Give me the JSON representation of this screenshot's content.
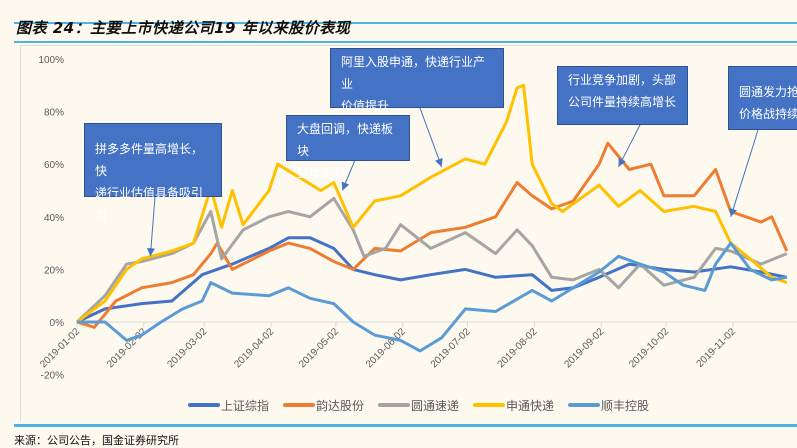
{
  "title": "图表 24：主要上市快递公司19 年以来股价表现",
  "source": "来源：公司公告，国金证券研究所",
  "chart_data": {
    "type": "line",
    "title": "",
    "xlabel": "",
    "ylabel": "",
    "ylim": [
      -20,
      100
    ],
    "yticks": [
      -20,
      0,
      20,
      40,
      60,
      80,
      100
    ],
    "ytick_labels": [
      "-20%",
      "0%",
      "20%",
      "40%",
      "60%",
      "80%",
      "100%"
    ],
    "xlim": [
      "2019-01-02",
      "2019-11-28"
    ],
    "xtick_labels": [
      "2019-01-02",
      "2019-02-02",
      "2019-03-02",
      "2019-04-02",
      "2019-05-02",
      "2019-06-02",
      "2019-07-02",
      "2019-08-02",
      "2019-09-02",
      "2019-10-02",
      "2019-11-02"
    ],
    "grid": false,
    "legend_position": "bottom",
    "series": [
      {
        "name": "上证综指",
        "color": "#4472c4",
        "points": [
          [
            "2019-01-02",
            0
          ],
          [
            "2019-01-15",
            5
          ],
          [
            "2019-02-01",
            7
          ],
          [
            "2019-02-15",
            8
          ],
          [
            "2019-03-01",
            18
          ],
          [
            "2019-03-15",
            22
          ],
          [
            "2019-04-01",
            28
          ],
          [
            "2019-04-10",
            32
          ],
          [
            "2019-04-20",
            32
          ],
          [
            "2019-05-01",
            28
          ],
          [
            "2019-05-10",
            20
          ],
          [
            "2019-05-20",
            18
          ],
          [
            "2019-06-01",
            16
          ],
          [
            "2019-06-15",
            18
          ],
          [
            "2019-07-01",
            20
          ],
          [
            "2019-07-15",
            17
          ],
          [
            "2019-08-01",
            18
          ],
          [
            "2019-08-10",
            12
          ],
          [
            "2019-08-20",
            13
          ],
          [
            "2019-09-01",
            17
          ],
          [
            "2019-09-15",
            22
          ],
          [
            "2019-10-01",
            20
          ],
          [
            "2019-10-15",
            19
          ],
          [
            "2019-11-01",
            21
          ],
          [
            "2019-11-15",
            19
          ],
          [
            "2019-11-27",
            17
          ]
        ]
      },
      {
        "name": "韵达股份",
        "color": "#ed7d31",
        "points": [
          [
            "2019-01-02",
            0
          ],
          [
            "2019-01-10",
            -2
          ],
          [
            "2019-01-20",
            8
          ],
          [
            "2019-02-01",
            13
          ],
          [
            "2019-02-15",
            15
          ],
          [
            "2019-02-25",
            18
          ],
          [
            "2019-03-05",
            26
          ],
          [
            "2019-03-08",
            30
          ],
          [
            "2019-03-15",
            20
          ],
          [
            "2019-04-01",
            27
          ],
          [
            "2019-04-10",
            30
          ],
          [
            "2019-04-20",
            28
          ],
          [
            "2019-05-01",
            23
          ],
          [
            "2019-05-10",
            20
          ],
          [
            "2019-05-20",
            28
          ],
          [
            "2019-06-01",
            27
          ],
          [
            "2019-06-15",
            34
          ],
          [
            "2019-07-01",
            36
          ],
          [
            "2019-07-15",
            40
          ],
          [
            "2019-07-25",
            53
          ],
          [
            "2019-08-01",
            48
          ],
          [
            "2019-08-10",
            43
          ],
          [
            "2019-08-20",
            46
          ],
          [
            "2019-09-01",
            60
          ],
          [
            "2019-09-05",
            68
          ],
          [
            "2019-09-15",
            58
          ],
          [
            "2019-09-25",
            60
          ],
          [
            "2019-10-01",
            48
          ],
          [
            "2019-10-15",
            48
          ],
          [
            "2019-10-25",
            58
          ],
          [
            "2019-11-01",
            42
          ],
          [
            "2019-11-15",
            38
          ],
          [
            "2019-11-20",
            40
          ],
          [
            "2019-11-27",
            27
          ]
        ]
      },
      {
        "name": "圆通速递",
        "color": "#a5a5a5",
        "points": [
          [
            "2019-01-02",
            0
          ],
          [
            "2019-01-15",
            10
          ],
          [
            "2019-01-25",
            22
          ],
          [
            "2019-02-01",
            23
          ],
          [
            "2019-02-15",
            26
          ],
          [
            "2019-02-25",
            30
          ],
          [
            "2019-03-05",
            42
          ],
          [
            "2019-03-10",
            24
          ],
          [
            "2019-03-20",
            35
          ],
          [
            "2019-04-01",
            40
          ],
          [
            "2019-04-10",
            42
          ],
          [
            "2019-04-20",
            40
          ],
          [
            "2019-05-01",
            47
          ],
          [
            "2019-05-10",
            35
          ],
          [
            "2019-05-15",
            25
          ],
          [
            "2019-05-25",
            28
          ],
          [
            "2019-06-01",
            37
          ],
          [
            "2019-06-15",
            28
          ],
          [
            "2019-07-01",
            34
          ],
          [
            "2019-07-15",
            26
          ],
          [
            "2019-07-25",
            35
          ],
          [
            "2019-08-01",
            29
          ],
          [
            "2019-08-10",
            17
          ],
          [
            "2019-08-20",
            16
          ],
          [
            "2019-09-01",
            20
          ],
          [
            "2019-09-10",
            13
          ],
          [
            "2019-09-20",
            22
          ],
          [
            "2019-10-01",
            14
          ],
          [
            "2019-10-15",
            17
          ],
          [
            "2019-10-25",
            28
          ],
          [
            "2019-11-01",
            27
          ],
          [
            "2019-11-15",
            22
          ],
          [
            "2019-11-27",
            26
          ]
        ]
      },
      {
        "name": "申通快递",
        "color": "#ffc000",
        "points": [
          [
            "2019-01-02",
            0
          ],
          [
            "2019-01-15",
            8
          ],
          [
            "2019-01-25",
            20
          ],
          [
            "2019-02-01",
            24
          ],
          [
            "2019-02-15",
            27
          ],
          [
            "2019-02-25",
            30
          ],
          [
            "2019-03-05",
            51
          ],
          [
            "2019-03-10",
            36
          ],
          [
            "2019-03-15",
            50
          ],
          [
            "2019-03-20",
            37
          ],
          [
            "2019-04-01",
            50
          ],
          [
            "2019-04-05",
            60
          ],
          [
            "2019-04-15",
            55
          ],
          [
            "2019-04-25",
            50
          ],
          [
            "2019-05-01",
            53
          ],
          [
            "2019-05-10",
            36
          ],
          [
            "2019-05-20",
            46
          ],
          [
            "2019-06-01",
            48
          ],
          [
            "2019-06-15",
            55
          ],
          [
            "2019-07-01",
            62
          ],
          [
            "2019-07-10",
            60
          ],
          [
            "2019-07-20",
            76
          ],
          [
            "2019-07-25",
            89
          ],
          [
            "2019-07-28",
            90
          ],
          [
            "2019-08-01",
            60
          ],
          [
            "2019-08-10",
            45
          ],
          [
            "2019-08-15",
            42
          ],
          [
            "2019-09-01",
            52
          ],
          [
            "2019-09-10",
            44
          ],
          [
            "2019-09-20",
            50
          ],
          [
            "2019-10-01",
            42
          ],
          [
            "2019-10-15",
            44
          ],
          [
            "2019-10-25",
            42
          ],
          [
            "2019-11-01",
            30
          ],
          [
            "2019-11-10",
            24
          ],
          [
            "2019-11-20",
            17
          ],
          [
            "2019-11-27",
            15
          ]
        ]
      },
      {
        "name": "顺丰控股",
        "color": "#5b9bd5",
        "points": [
          [
            "2019-01-02",
            0
          ],
          [
            "2019-01-15",
            0
          ],
          [
            "2019-01-25",
            -7
          ],
          [
            "2019-02-01",
            -5
          ],
          [
            "2019-02-10",
            0
          ],
          [
            "2019-02-20",
            5
          ],
          [
            "2019-03-01",
            8
          ],
          [
            "2019-03-05",
            15
          ],
          [
            "2019-03-15",
            11
          ],
          [
            "2019-04-01",
            10
          ],
          [
            "2019-04-10",
            13
          ],
          [
            "2019-04-20",
            9
          ],
          [
            "2019-05-01",
            7
          ],
          [
            "2019-05-10",
            0
          ],
          [
            "2019-05-20",
            -5
          ],
          [
            "2019-06-01",
            -7
          ],
          [
            "2019-06-10",
            -11
          ],
          [
            "2019-06-20",
            -6
          ],
          [
            "2019-07-01",
            5
          ],
          [
            "2019-07-15",
            4
          ],
          [
            "2019-08-01",
            12
          ],
          [
            "2019-08-10",
            8
          ],
          [
            "2019-08-20",
            13
          ],
          [
            "2019-09-01",
            19
          ],
          [
            "2019-09-10",
            25
          ],
          [
            "2019-09-20",
            22
          ],
          [
            "2019-10-01",
            19
          ],
          [
            "2019-10-10",
            14
          ],
          [
            "2019-10-20",
            12
          ],
          [
            "2019-10-25",
            22
          ],
          [
            "2019-11-01",
            30
          ],
          [
            "2019-11-10",
            20
          ],
          [
            "2019-11-20",
            16
          ],
          [
            "2019-11-27",
            17
          ]
        ]
      }
    ],
    "annotations": [
      {
        "text": "拼多多件量高增长，快\n递行业估值具备吸引力",
        "target_date": "2019-02-05",
        "target_value": 25
      },
      {
        "text": "大盘回调，快递板块\n整体走弱",
        "target_date": "2019-05-05",
        "target_value": 50
      },
      {
        "text": "阿里入股申通，快递行业产业\n价值提升",
        "target_date": "2019-06-20",
        "target_value": 59
      },
      {
        "text": "行业竞争加剧，头部\n公司件量持续高增长",
        "target_date": "2019-09-10",
        "target_value": 59
      },
      {
        "text": "圆通发力抢\n价格战持续",
        "target_date": "2019-11-01",
        "target_value": 40
      }
    ]
  }
}
